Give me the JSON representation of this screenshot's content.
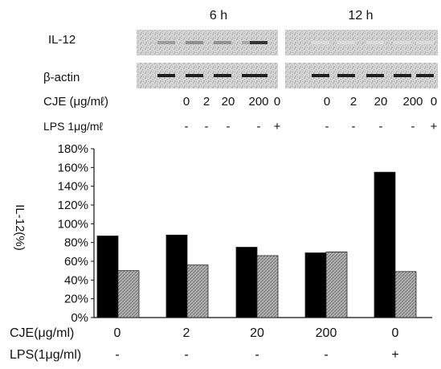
{
  "blot": {
    "time_labels": [
      "6 h",
      "12 h"
    ],
    "rows": [
      {
        "label": "IL-12",
        "bands": [
          [
            0.35,
            0.42,
            0.4,
            0.3,
            0.85
          ],
          [
            0.05,
            0.05,
            0.05,
            0.05,
            0.05
          ]
        ]
      },
      {
        "label": "β-actin",
        "bands": [
          [
            0.95,
            0.95,
            0.95,
            0.95,
            0.95
          ],
          [
            0.95,
            0.95,
            0.95,
            0.95,
            0.95
          ]
        ]
      }
    ],
    "cje_label": "CJE (μg/mℓ)",
    "lps_label": "LPS 1μg/mℓ",
    "cje_values": [
      "0",
      "2",
      "20",
      "200",
      "0"
    ],
    "lps_values": [
      "-",
      "-",
      "-",
      "-",
      "+"
    ]
  },
  "chart_data": {
    "type": "bar",
    "ylabel": "IL-12(%)",
    "ylim": [
      0,
      180
    ],
    "yticks": [
      "0%",
      "20%",
      "40%",
      "60%",
      "80%",
      "100%",
      "120%",
      "140%",
      "160%",
      "180%"
    ],
    "categories": [
      "0",
      "2",
      "20",
      "200",
      "0"
    ],
    "series": [
      {
        "color": "#000000",
        "values": [
          87,
          88,
          75,
          69,
          155
        ]
      },
      {
        "color": "#9a9a9a",
        "values": [
          50,
          56,
          66,
          70,
          49
        ]
      }
    ],
    "row_labels": [
      "CJE(μg/ml)",
      "LPS(1μg/ml)"
    ],
    "lps_values": [
      "-",
      "-",
      "-",
      "-",
      "+"
    ]
  }
}
